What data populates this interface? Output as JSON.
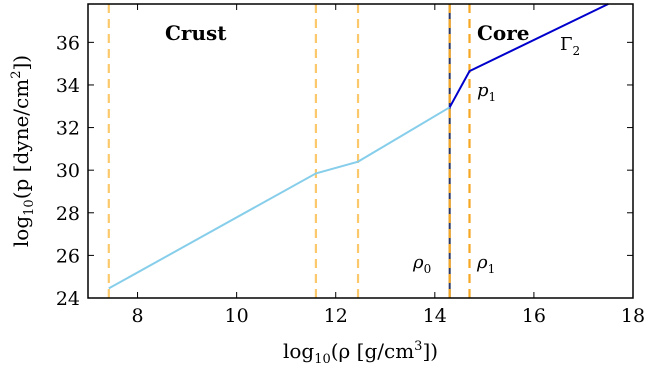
{
  "chart_data": {
    "type": "line",
    "xlabel": "log10(ρ [g/cm3])",
    "ylabel": "log10(p [dyne/cm2])",
    "xlim": [
      7,
      18
    ],
    "ylim": [
      24,
      37.8
    ],
    "xticks": [
      "8",
      "10",
      "12",
      "14",
      "16",
      "18"
    ],
    "yticks": [
      "24",
      "26",
      "28",
      "30",
      "32",
      "34",
      "36"
    ],
    "grid": false,
    "series": [
      {
        "color": "#87ceeb",
        "x": [
          7.42,
          11.6,
          12.45,
          14.3
        ],
        "y": [
          24.45,
          29.85,
          30.4,
          32.95
        ]
      },
      {
        "color": "#0000cc",
        "x": [
          14.3,
          14.7,
          17.5
        ],
        "y": [
          32.95,
          34.65,
          37.8
        ]
      }
    ],
    "vlines": [
      {
        "x": 7.42,
        "color": "#fbc96c",
        "style": "dashed"
      },
      {
        "x": 11.6,
        "color": "#fbc96c",
        "style": "dashed"
      },
      {
        "x": 12.45,
        "color": "#fbc96c",
        "style": "dashed"
      },
      {
        "x": 14.3,
        "color": "#f5a623",
        "style": "dashed-over-navy"
      },
      {
        "x": 14.7,
        "color": "#f5a623",
        "style": "dashed"
      }
    ],
    "annotations": {
      "crust": "Crust",
      "core": "Core",
      "gamma2": "Γ2",
      "p1": "p1",
      "rho0": "ρ0",
      "rho1": "ρ1"
    }
  }
}
